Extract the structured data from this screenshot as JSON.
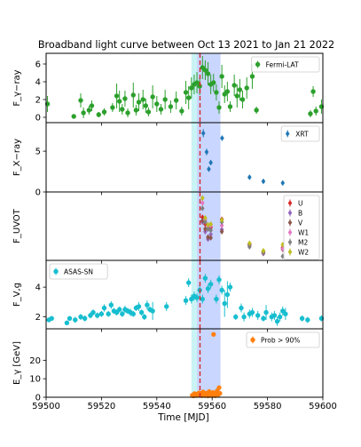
{
  "title": "Broadband light curve between Oct 13 2021 to Jan 21 2022",
  "xlabel": "Time [MJD]",
  "xlim": [
    59500,
    59600
  ],
  "xticks": [
    59500,
    59520,
    59540,
    59560,
    59580,
    59600
  ],
  "bands": {
    "cyan_span": [
      59552.5,
      59554.5
    ],
    "blue_span": [
      59554.5,
      59563
    ],
    "flare_line": 59555.6,
    "cyan_color": "#c9f3f5",
    "blue_color": "#c9d6ff",
    "line_color": "#d62728"
  },
  "chart_data": [
    {
      "type": "scatter",
      "ylabel": "F_γ−ray",
      "ylim": [
        -0.6,
        7.2
      ],
      "yticks": [
        0,
        2,
        4,
        6
      ],
      "legend_position": "top-right",
      "series": [
        {
          "name": "Fermi-LAT",
          "color": "#2ca02c",
          "points": [
            [
              59500.5,
              1.5,
              0.9
            ],
            [
              59510,
              0.1,
              0.2
            ],
            [
              59512.5,
              1.9,
              0.8
            ],
            [
              59513.5,
              0.5,
              0.6
            ],
            [
              59515.5,
              0.8,
              0.5
            ],
            [
              59516.5,
              1.3,
              0.6
            ],
            [
              59519,
              0.3,
              0.3
            ],
            [
              59521,
              0.6,
              0.4
            ],
            [
              59524,
              1.1,
              0.5
            ],
            [
              59525.5,
              2.4,
              1.4
            ],
            [
              59526.5,
              1.8,
              1.2
            ],
            [
              59527.5,
              0.9,
              0.6
            ],
            [
              59528.5,
              2.1,
              0.9
            ],
            [
              59529.5,
              0.5,
              0.5
            ],
            [
              59531.5,
              2.5,
              1.4
            ],
            [
              59532.5,
              0.8,
              0.6
            ],
            [
              59533.5,
              1.7,
              1.0
            ],
            [
              59535,
              2.0,
              1.1
            ],
            [
              59536,
              1.3,
              0.8
            ],
            [
              59537,
              0.6,
              0.5
            ],
            [
              59538.5,
              2.3,
              1.3
            ],
            [
              59540,
              1.5,
              0.9
            ],
            [
              59541.5,
              0.9,
              0.6
            ],
            [
              59543,
              2.0,
              1.1
            ],
            [
              59545,
              1.2,
              0.7
            ],
            [
              59547,
              1.9,
              1.0
            ],
            [
              59549,
              0.7,
              0.5
            ],
            [
              59550.5,
              2.8,
              1.3
            ],
            [
              59551.5,
              2.2,
              1.3
            ],
            [
              59552.5,
              3.3,
              1.2
            ],
            [
              59553.5,
              3.7,
              1.1
            ],
            [
              59554.5,
              3.9,
              1.2
            ],
            [
              59555.5,
              3.5,
              1.0
            ],
            [
              59556.5,
              5.6,
              1.3
            ],
            [
              59557.5,
              5.3,
              1.1
            ],
            [
              59558.5,
              4.9,
              1.3
            ],
            [
              59559.5,
              3.7,
              1.1
            ],
            [
              59560.5,
              3.9,
              1.0
            ],
            [
              59561.5,
              2.8,
              0.9
            ],
            [
              59562.5,
              1.1,
              0.7
            ],
            [
              59563.5,
              4.6,
              1.3
            ],
            [
              59564.5,
              2.6,
              1.0
            ],
            [
              59565.5,
              2.9,
              1.1
            ],
            [
              59566.5,
              1.2,
              0.6
            ],
            [
              59568,
              3.6,
              1.2
            ],
            [
              59569,
              2.4,
              1.3
            ],
            [
              59570,
              3.1,
              1.2
            ],
            [
              59571,
              2.0,
              1.0
            ],
            [
              59572.5,
              3.3,
              1.2
            ],
            [
              59574.5,
              4.6,
              1.4
            ],
            [
              59576,
              0.8,
              0.4
            ],
            [
              59595.5,
              0.4,
              0.4
            ],
            [
              59596.5,
              2.9,
              0.6
            ],
            [
              59597.5,
              0.7,
              0.5
            ],
            [
              59599.5,
              1.2,
              0.8
            ]
          ]
        }
      ]
    },
    {
      "type": "scatter",
      "ylabel": "F_X−ray",
      "ylim": [
        0,
        8.5
      ],
      "yticks": [
        0,
        5
      ],
      "legend_position": "top-right",
      "series": [
        {
          "name": "XRT",
          "color": "#1f77b4",
          "points": [
            [
              59556.8,
              7.2,
              0.5
            ],
            [
              59558,
              4.9,
              0.4
            ],
            [
              59558.8,
              2.8,
              0.3
            ],
            [
              59559.5,
              3.6,
              0.3
            ],
            [
              59563.6,
              6.6,
              0.3
            ],
            [
              59573.5,
              1.8,
              0.2
            ],
            [
              59578.5,
              1.3,
              0.2
            ],
            [
              59585.5,
              1.1,
              0.2
            ]
          ]
        }
      ]
    },
    {
      "type": "scatter",
      "ylabel": "F_UVOT",
      "ylim": [
        0,
        10
      ],
      "yticks": [],
      "legend_position": "top-right",
      "series": [
        {
          "name": "U",
          "color": "#d62728",
          "points": [
            [
              59556.5,
              6.3
            ],
            [
              59557.5,
              5.3
            ],
            [
              59558.5,
              4.6
            ],
            [
              59559.5,
              4.8
            ],
            [
              59563.5,
              6.0
            ],
            [
              59573.5,
              2.4
            ],
            [
              59578.5,
              1.3
            ],
            [
              59585.5,
              1.9
            ]
          ]
        },
        {
          "name": "B",
          "color": "#9467bd",
          "points": [
            [
              59556.5,
              5.6
            ],
            [
              59557.5,
              4.2
            ],
            [
              59558.5,
              3.1
            ],
            [
              59559.5,
              3.8
            ],
            [
              59563.5,
              4.5
            ],
            [
              59573.5,
              2.2
            ],
            [
              59578.5,
              1.0
            ],
            [
              59585.5,
              1.7
            ]
          ]
        },
        {
          "name": "V",
          "color": "#8c564b",
          "points": [
            [
              59556.5,
              5.8
            ],
            [
              59557.5,
              4.6
            ],
            [
              59558.5,
              3.4
            ],
            [
              59559.5,
              3.3
            ],
            [
              59563.5,
              4.2
            ],
            [
              59573.5,
              2.3
            ],
            [
              59578.5,
              1.1
            ],
            [
              59585.5,
              1.6
            ]
          ]
        },
        {
          "name": "W1",
          "color": "#e377c2",
          "points": [
            [
              59556.5,
              8.4
            ],
            [
              59557.5,
              5.9
            ],
            [
              59558.5,
              4.9
            ],
            [
              59559.5,
              5.1
            ],
            [
              59563.5,
              5.1
            ],
            [
              59573.5,
              2.0
            ],
            [
              59578.5,
              1.2
            ],
            [
              59585.5,
              1.7
            ]
          ]
        },
        {
          "name": "M2",
          "color": "#7f7f7f",
          "points": [
            [
              59556.5,
              7.6
            ],
            [
              59557.5,
              5.6
            ],
            [
              59558.5,
              4.6
            ],
            [
              59559.5,
              4.4
            ],
            [
              59563.5,
              5.6
            ],
            [
              59573.5,
              2.0
            ],
            [
              59578.5,
              1.2
            ],
            [
              59585.5,
              0.6
            ]
          ]
        },
        {
          "name": "W2",
          "color": "#bcbd22",
          "points": [
            [
              59556.5,
              9.1
            ],
            [
              59557.5,
              6.2
            ],
            [
              59558.5,
              5.2
            ],
            [
              59559.5,
              5.3
            ],
            [
              59563.5,
              5.9
            ],
            [
              59573.5,
              2.5
            ],
            [
              59578.5,
              1.4
            ],
            [
              59585.5,
              2.3
            ]
          ]
        }
      ]
    },
    {
      "type": "scatter",
      "ylabel": "F_V,g",
      "ylim": [
        1.2,
        5.8
      ],
      "yticks": [
        2,
        4
      ],
      "legend_position": "top-left",
      "series": [
        {
          "name": "ASAS-SN",
          "color": "#17becf",
          "points": [
            [
              59501,
              1.8,
              0.15
            ],
            [
              59502,
              1.9,
              0.15
            ],
            [
              59507.5,
              1.6,
              0.15
            ],
            [
              59508.5,
              1.9,
              0.15
            ],
            [
              59510.5,
              1.8,
              0.2
            ],
            [
              59512.5,
              2.0,
              0.2
            ],
            [
              59514,
              1.9,
              0.2
            ],
            [
              59516,
              2.1,
              0.2
            ],
            [
              59517,
              2.3,
              0.2
            ],
            [
              59518.5,
              2.1,
              0.2
            ],
            [
              59520,
              2.2,
              0.2
            ],
            [
              59521,
              2.6,
              0.25
            ],
            [
              59522.5,
              2.2,
              0.2
            ],
            [
              59523.5,
              2.8,
              0.25
            ],
            [
              59524.5,
              2.4,
              0.2
            ],
            [
              59525.5,
              2.3,
              0.2
            ],
            [
              59526.5,
              2.5,
              0.2
            ],
            [
              59527.5,
              2.2,
              0.2
            ],
            [
              59528.5,
              2.5,
              0.25
            ],
            [
              59529.5,
              2.4,
              0.2
            ],
            [
              59530.5,
              2.3,
              0.25
            ],
            [
              59531.5,
              2.2,
              0.2
            ],
            [
              59532.5,
              2.6,
              0.2
            ],
            [
              59533.5,
              2.7,
              0.3
            ],
            [
              59534.5,
              2.3,
              0.2
            ],
            [
              59535.5,
              2.0,
              0.2
            ],
            [
              59536.5,
              2.8,
              0.3
            ],
            [
              59537.5,
              2.5,
              0.2
            ],
            [
              59538.5,
              2.4,
              0.6
            ],
            [
              59543.5,
              2.7,
              0.3
            ],
            [
              59550.5,
              3.1,
              0.3
            ],
            [
              59551.5,
              4.3,
              0.3
            ],
            [
              59552.5,
              3.2,
              0.3
            ],
            [
              59553.5,
              3.4,
              0.3
            ],
            [
              59554.5,
              3.3,
              0.3
            ],
            [
              59555.5,
              3.8,
              0.4
            ],
            [
              59556.5,
              3.2,
              0.3
            ],
            [
              59557.5,
              4.6,
              0.3
            ],
            [
              59558.5,
              3.9,
              0.3
            ],
            [
              59559.5,
              4.2,
              0.3
            ],
            [
              59561.5,
              3.2,
              0.3
            ],
            [
              59562.5,
              4.5,
              0.3
            ],
            [
              59563.5,
              3.8,
              0.3
            ],
            [
              59564.5,
              2.9,
              0.9
            ],
            [
              59565.5,
              3.5,
              0.9
            ],
            [
              59566.5,
              4.0,
              0.3
            ],
            [
              59568.5,
              2.0,
              0.2
            ],
            [
              59570.5,
              2.6,
              0.3
            ],
            [
              59571.5,
              2.0,
              0.3
            ],
            [
              59573.5,
              2.2,
              0.3
            ],
            [
              59574.5,
              2.3,
              0.3
            ],
            [
              59576.5,
              2.1,
              0.3
            ],
            [
              59578.5,
              1.9,
              0.2
            ],
            [
              59579.5,
              2.3,
              0.5
            ],
            [
              59581.5,
              2.0,
              0.3
            ],
            [
              59582.5,
              2.1,
              0.3
            ],
            [
              59583.5,
              1.7,
              0.3
            ],
            [
              59584.5,
              2.0,
              0.3
            ],
            [
              59585.5,
              2.4,
              0.3
            ],
            [
              59586.5,
              2.2,
              0.4
            ],
            [
              59592.5,
              1.9,
              0.2
            ],
            [
              59594.5,
              1.8,
              0.2
            ],
            [
              59599.5,
              1.9,
              0.2
            ]
          ]
        }
      ]
    },
    {
      "type": "scatter",
      "ylabel": "E_γ [GeV]",
      "ylim": [
        0,
        37
      ],
      "yticks": [
        0,
        10,
        20
      ],
      "legend_position": "top-right",
      "series": [
        {
          "name": "Prob > 90%",
          "color": "#ff7f0e",
          "points": [
            [
              59552.8,
              1.1
            ],
            [
              59553.2,
              0.7
            ],
            [
              59553.6,
              2.0
            ],
            [
              59553.9,
              1.5
            ],
            [
              59554.2,
              0.9
            ],
            [
              59554.6,
              1.8
            ],
            [
              59554.9,
              1.2
            ],
            [
              59555.3,
              2.4
            ],
            [
              59555.7,
              1.0
            ],
            [
              59556.0,
              1.9
            ],
            [
              59556.3,
              0.8
            ],
            [
              59556.7,
              2.9
            ],
            [
              59557.0,
              1.4
            ],
            [
              59557.4,
              0.9
            ],
            [
              59557.8,
              2.2
            ],
            [
              59558.1,
              1.6
            ],
            [
              59558.5,
              0.7
            ],
            [
              59558.9,
              3.1
            ],
            [
              59559.2,
              1.2
            ],
            [
              59559.6,
              1.8
            ],
            [
              59559.9,
              0.9
            ],
            [
              59560.3,
              2.6
            ],
            [
              59560.6,
              1.3
            ],
            [
              59561.0,
              0.8
            ],
            [
              59561.4,
              1.9
            ],
            [
              59561.8,
              3.5
            ],
            [
              59562.2,
              1.5
            ],
            [
              59562.5,
              5.2
            ],
            [
              59562.8,
              2.1
            ],
            [
              59560.5,
              34.0
            ]
          ]
        }
      ]
    }
  ]
}
